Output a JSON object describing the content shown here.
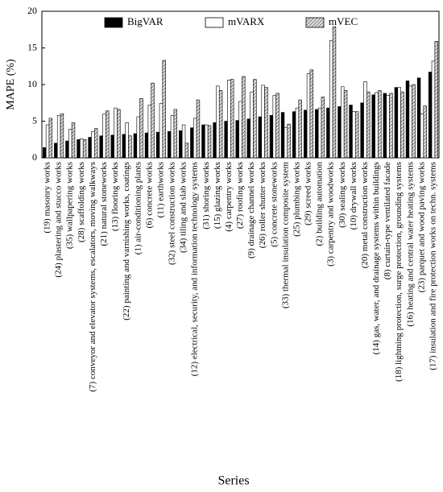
{
  "chart_data": {
    "type": "bar",
    "x_label": "Series",
    "y_label": "MAPE (%)",
    "categories": [
      "(19) masonry works",
      "(24) plastering and stucco works",
      "(35) wallpapering works",
      "(28) scaffolding works",
      "(7) conveyor and elevator systems, escalators, moving walkways",
      "(21) natural stoneworks",
      "(13) flooring works",
      "(22) painting and varnishing works, coatings",
      "(1) air-conditioning plants",
      "(6) concrete works",
      "(11) earthworks",
      "(32) steel construction works",
      "(34) tiling and slab works",
      "(12) electrical, security, and information technology systems",
      "(31) shoring works",
      "(15) glazing works",
      "(4) carpentry works",
      "(27) roofing works",
      "(9) drainage channel works",
      "(26) roller shutter works",
      "(5) concrete stoneworks",
      "(33) thermal insulation composite system",
      "(25) plumbing works",
      "(29) screed works",
      "(2) building automation",
      "(3) carpentry and woodworks",
      "(30) sealing works",
      "(10) drywall works",
      "(20) metal construction works",
      "(14) gas, water, and drainage systems within buildings",
      "(8) curtain-type ventilated facade",
      "(18) lightning protection, surge protection, grounding systems",
      "(16) heating and central water heating systems",
      "(23) parquet and wood paving works",
      "(17) insulation and fire protection works on techn. systems"
    ],
    "series": [
      {
        "name": "BigVAR",
        "color": "#000000",
        "values": [
          1.4,
          2.0,
          2.3,
          2.5,
          2.8,
          3.0,
          3.1,
          3.2,
          3.3,
          3.4,
          3.5,
          3.6,
          3.7,
          4.1,
          4.5,
          4.8,
          5.0,
          5.1,
          5.3,
          5.6,
          5.8,
          6.2,
          6.3,
          6.5,
          6.6,
          6.8,
          7.0,
          7.2,
          7.5,
          8.6,
          8.8,
          9.6,
          10.5,
          10.9,
          11.7
        ]
      },
      {
        "name": "mVARX",
        "color": "#ffffff",
        "values": [
          4.5,
          5.8,
          3.9,
          2.6,
          3.6,
          6.0,
          6.8,
          4.8,
          5.6,
          7.2,
          7.4,
          5.8,
          4.5,
          5.4,
          4.5,
          9.8,
          10.6,
          7.7,
          9.0,
          9.9,
          8.5,
          4.1,
          6.8,
          11.5,
          6.8,
          16.0,
          9.7,
          6.3,
          10.4,
          8.9,
          8.5,
          9.6,
          9.8,
          6.0,
          13.2
        ]
      },
      {
        "name": "mVEC",
        "color": "#d9d9d9",
        "pattern": "hatch",
        "values": [
          5.4,
          6.0,
          4.8,
          2.5,
          4.0,
          6.4,
          6.6,
          3.0,
          8.1,
          10.2,
          13.3,
          6.6,
          2.0,
          7.9,
          4.4,
          9.2,
          10.7,
          11.1,
          10.7,
          9.6,
          8.8,
          4.6,
          7.9,
          12.0,
          8.3,
          17.9,
          9.2,
          6.3,
          9.0,
          9.2,
          8.8,
          9.0,
          10.0,
          7.1,
          15.9
        ]
      }
    ],
    "ylim": [
      0,
      20
    ],
    "yticks": [
      0,
      5,
      10,
      15,
      20
    ],
    "grid": false,
    "legend": "top"
  }
}
